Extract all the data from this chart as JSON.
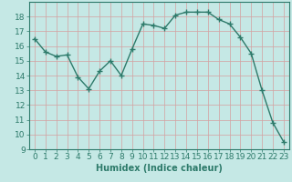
{
  "x": [
    0,
    1,
    2,
    3,
    4,
    5,
    6,
    7,
    8,
    9,
    10,
    11,
    12,
    13,
    14,
    15,
    16,
    17,
    18,
    19,
    20,
    21,
    22,
    23
  ],
  "y": [
    16.5,
    15.6,
    15.3,
    15.4,
    13.9,
    13.1,
    14.3,
    15.0,
    14.0,
    15.8,
    17.5,
    17.4,
    17.2,
    18.1,
    18.3,
    18.3,
    18.3,
    17.8,
    17.5,
    16.6,
    15.5,
    13.0,
    10.8,
    9.5
  ],
  "line_color": "#2d7a6a",
  "marker": "+",
  "markersize": 4,
  "linewidth": 1.0,
  "bg_color": "#c5e8e5",
  "grid_color": "#d4a0a0",
  "xlabel": "Humidex (Indice chaleur)",
  "xlim": [
    -0.5,
    23.5
  ],
  "ylim": [
    9,
    19
  ],
  "yticks": [
    9,
    10,
    11,
    12,
    13,
    14,
    15,
    16,
    17,
    18
  ],
  "xticks": [
    0,
    1,
    2,
    3,
    4,
    5,
    6,
    7,
    8,
    9,
    10,
    11,
    12,
    13,
    14,
    15,
    16,
    17,
    18,
    19,
    20,
    21,
    22,
    23
  ],
  "xlabel_fontsize": 7,
  "tick_fontsize": 6.5
}
